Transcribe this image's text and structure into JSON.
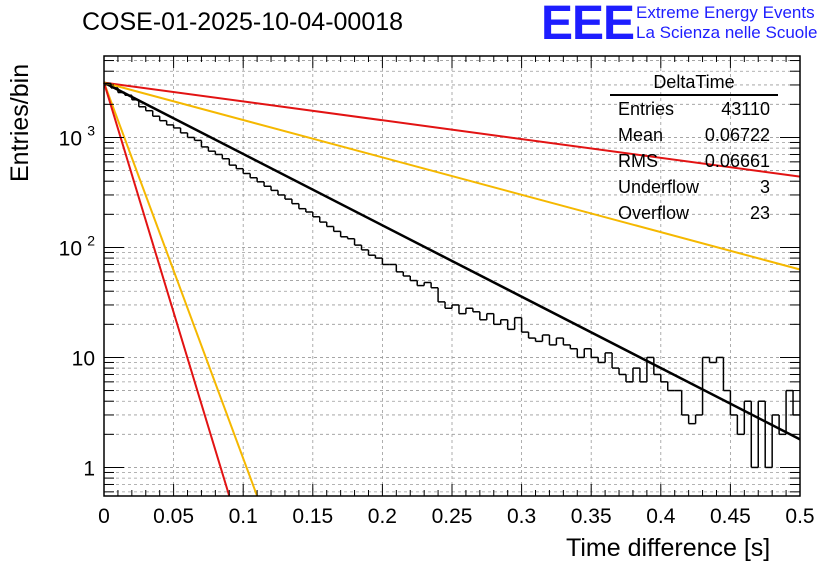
{
  "header": {
    "run_title": "COSE-01-2025-10-04-00018",
    "logo_text": "EEE",
    "logo_line1": "Extreme Energy Events",
    "logo_line2": "La Scienza nelle Scuole"
  },
  "stats_box": {
    "title": "DeltaTime",
    "rows": [
      {
        "label": "Entries",
        "value": "43110"
      },
      {
        "label": "Mean",
        "value": "0.06722"
      },
      {
        "label": "RMS",
        "value": "0.06661"
      },
      {
        "label": "Underflow",
        "value": "3"
      },
      {
        "label": "Overflow",
        "value": "23"
      }
    ]
  },
  "colors": {
    "histogram": "#000000",
    "fit": "#000000",
    "red_line": "#e21313",
    "orange_line": "#f5b800"
  },
  "chart_data": {
    "type": "histogram",
    "title": "COSE-01-2025-10-04-00018",
    "xlabel": "Time difference [s]",
    "ylabel": "Entries/bin",
    "xlim": [
      0,
      0.5
    ],
    "ylim": [
      0.55,
      5500
    ],
    "yscale": "log",
    "grid": true,
    "xticks": [
      {
        "v": 0,
        "label": "0"
      },
      {
        "v": 0.05,
        "label": "0.05"
      },
      {
        "v": 0.1,
        "label": "0.1"
      },
      {
        "v": 0.15,
        "label": "0.15"
      },
      {
        "v": 0.2,
        "label": "0.2"
      },
      {
        "v": 0.25,
        "label": "0.25"
      },
      {
        "v": 0.3,
        "label": "0.3"
      },
      {
        "v": 0.35,
        "label": "0.35"
      },
      {
        "v": 0.4,
        "label": "0.4"
      },
      {
        "v": 0.45,
        "label": "0.45"
      },
      {
        "v": 0.5,
        "label": "0.5"
      }
    ],
    "yticks": [
      {
        "v": 1,
        "label": "1"
      },
      {
        "v": 10,
        "label": "10"
      },
      {
        "v": 100,
        "label": "10",
        "exp": "2"
      },
      {
        "v": 1000,
        "label": "10",
        "exp": "3"
      }
    ],
    "histogram": {
      "bin_width": 0.005,
      "counts": [
        3100,
        2820,
        2560,
        2420,
        2200,
        1900,
        1750,
        1560,
        1420,
        1300,
        1220,
        1100,
        1000,
        940,
        820,
        750,
        700,
        640,
        560,
        520,
        470,
        430,
        395,
        360,
        330,
        300,
        275,
        250,
        225,
        210,
        190,
        170,
        155,
        140,
        125,
        120,
        105,
        95,
        85,
        80,
        70,
        70,
        60,
        55,
        50,
        45,
        48,
        43,
        32,
        28,
        30,
        25,
        28,
        26,
        22,
        25,
        20,
        22,
        18,
        23,
        17,
        15,
        14,
        16,
        13,
        15,
        13,
        12,
        10,
        12,
        10,
        9,
        11,
        8,
        7,
        6,
        8,
        6,
        10,
        7,
        6,
        5,
        5,
        3,
        2.5,
        3,
        10,
        9,
        10,
        5,
        3,
        2,
        4,
        1,
        4,
        1,
        3,
        2,
        5,
        3
      ]
    },
    "series": [
      {
        "name": "fit",
        "color": "#000000",
        "x": [
          0,
          0.5
        ],
        "y": [
          3150,
          1.8
        ]
      },
      {
        "name": "slow-red",
        "color": "#e21313",
        "x": [
          0,
          0.5
        ],
        "y": [
          3150,
          440
        ]
      },
      {
        "name": "slow-orange",
        "color": "#f5b800",
        "x": [
          0,
          0.5
        ],
        "y": [
          3150,
          63
        ]
      },
      {
        "name": "fast-orange",
        "color": "#f5b800",
        "x": [
          0,
          0.11
        ],
        "y": [
          3150,
          0.55
        ]
      },
      {
        "name": "fast-red",
        "color": "#e21313",
        "x": [
          0,
          0.09
        ],
        "y": [
          3150,
          0.55
        ]
      }
    ]
  }
}
